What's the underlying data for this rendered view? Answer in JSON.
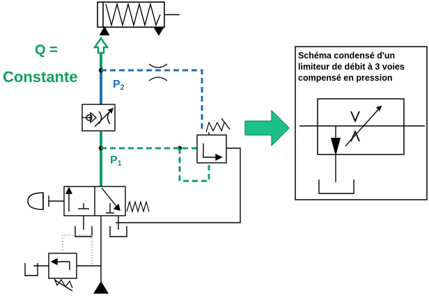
{
  "labels": {
    "q": "Q =",
    "constant": "Constante",
    "p2": "P",
    "p2_sub": "2",
    "p1": "P",
    "p1_sub": "1"
  },
  "panel": {
    "title": "Schéma condensé d'un limiteur de débit à 3 voies compensé en pression"
  },
  "colors": {
    "green": "#10a060",
    "blue": "#1f6fb0",
    "arrow": "#1ec08a",
    "line": "#000000",
    "gray": "#888888"
  }
}
